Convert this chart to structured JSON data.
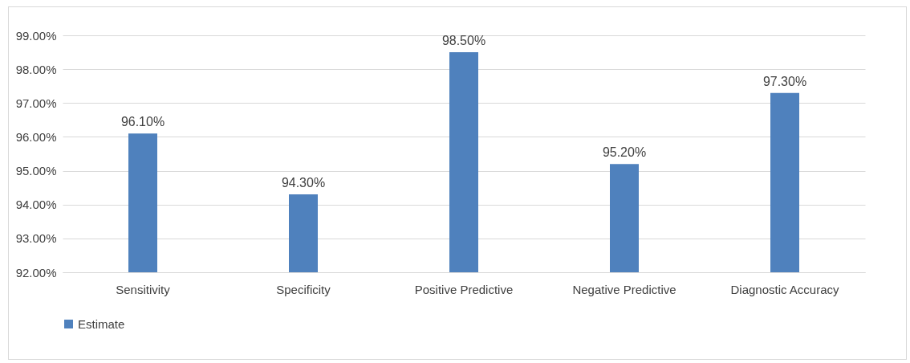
{
  "chart_data": {
    "type": "bar",
    "categories": [
      "Sensitivity",
      "Specificity",
      "Positive Predictive",
      "Negative Predictive",
      "Diagnostic Accuracy"
    ],
    "series": [
      {
        "name": "Estimate",
        "color": "#4f81bd",
        "values": [
          96.1,
          94.3,
          98.5,
          95.2,
          97.3
        ],
        "value_labels": [
          "96.10%",
          "94.30%",
          "98.50%",
          "95.20%",
          "97.30%"
        ]
      }
    ],
    "ylim": [
      92,
      99
    ],
    "yticks": [
      {
        "value": 92,
        "label": "92.00%"
      },
      {
        "value": 93,
        "label": "93.00%"
      },
      {
        "value": 94,
        "label": "94.00%"
      },
      {
        "value": 95,
        "label": "95.00%"
      },
      {
        "value": 96,
        "label": "96.00%"
      },
      {
        "value": 97,
        "label": "97.00%"
      },
      {
        "value": 98,
        "label": "98.00%"
      },
      {
        "value": 99,
        "label": "99.00%"
      }
    ],
    "grid": "y",
    "legend": "bottom"
  }
}
